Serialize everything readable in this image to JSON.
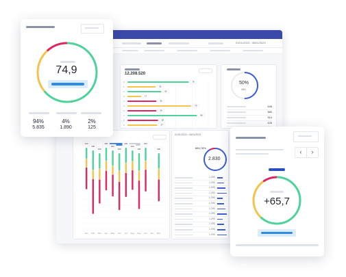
{
  "dashboard": {
    "toolbar": {
      "date_range": "01/01/2023 - 05/01/2023"
    },
    "bar_panel": {
      "total": "12.208.520",
      "chart_data": {
        "type": "bar",
        "orientation": "horizontal",
        "categories": [
          "0",
          "1",
          "2",
          "3",
          "4",
          "5",
          "6",
          "7",
          "8",
          "9"
        ],
        "series": [
          {
            "values": [
              76,
              0,
              42,
              0,
              0,
              0,
              0,
              86,
              0,
              0
            ],
            "color": "#4cd39a"
          },
          {
            "values": [
              0,
              35,
              0,
              17,
              0,
              79,
              0,
              0,
              0,
              37
            ],
            "color": "#f5c24b"
          },
          {
            "values": [
              0,
              0,
              0,
              0,
              36,
              0,
              36,
              0,
              38,
              0
            ],
            "color": "#e0245e"
          }
        ],
        "value_labels": [
          "76",
          "35",
          "42",
          "17",
          "36",
          "79",
          "36",
          "86",
          "38",
          "37"
        ],
        "xlim": [
          0,
          100
        ]
      }
    },
    "ring_panel": {
      "percent": "50%",
      "count": "280",
      "list": [
        "446",
        "380",
        "314",
        "126"
      ]
    },
    "column_panel": {
      "chart_data": {
        "type": "bar",
        "categories": [
          "Jan",
          "Feb",
          "Mar",
          "Apr",
          "May",
          "Jun",
          "Jul",
          "Aug",
          "Sep",
          "Oct",
          "Nov",
          "Dec"
        ],
        "top_labels": [
          "100",
          "700",
          "100",
          "100",
          "100",
          "100",
          "100",
          "100",
          "100",
          "100",
          "",
          "100"
        ],
        "segments": [
          {
            "green": 10,
            "yellow": 8,
            "red": 20
          },
          {
            "green": 18,
            "yellow": 8,
            "red": 32
          },
          {
            "green": 14,
            "yellow": 10,
            "red": 22
          },
          {
            "green": 12,
            "yellow": 9,
            "red": 18
          },
          {
            "green": 14,
            "yellow": 8,
            "red": 20
          },
          {
            "green": 16,
            "yellow": 10,
            "red": 26
          },
          {
            "green": 14,
            "yellow": 9,
            "red": 22
          },
          {
            "green": 10,
            "yellow": 8,
            "red": 18
          },
          {
            "green": 16,
            "yellow": 9,
            "red": 26
          },
          {
            "green": 12,
            "yellow": 8,
            "red": 20
          },
          {
            "green": 0,
            "yellow": 0,
            "red": 0
          },
          {
            "green": 14,
            "yellow": 10,
            "red": 20
          }
        ],
        "colors": {
          "green": "#4cd39a",
          "yellow": "#f5c24b",
          "red": "#e0245e"
        }
      }
    },
    "mid_panel": {
      "header": "01/01/2023 - 05/01/2023",
      "gauge_label": "884,78%",
      "gauge_value": "2.830",
      "list_values": [
        "1.290",
        "1.290",
        "1.290",
        "1.290",
        "1.290",
        "1.290",
        "1.290",
        "1.290",
        "1.290",
        "1.290",
        "1.290",
        "1.290"
      ]
    }
  },
  "left_card": {
    "value": "74,9",
    "stats": [
      {
        "percent": "94%",
        "count": "5.835"
      },
      {
        "percent": "4%",
        "count": "1.890"
      },
      {
        "percent": "2%",
        "count": "125"
      }
    ],
    "gauge": {
      "green": 0.64,
      "yellow": 0.24,
      "red": 0.12
    },
    "colors": {
      "green": "#4cd39a",
      "yellow": "#f5c24b",
      "red": "#e0245e",
      "accent": "#2f8be0"
    }
  },
  "right_card": {
    "value": "+65,7",
    "nav_prev": "‹",
    "nav_next": "›",
    "gauge": {
      "green": 0.62,
      "yellow": 0.28,
      "red": 0.1
    }
  }
}
